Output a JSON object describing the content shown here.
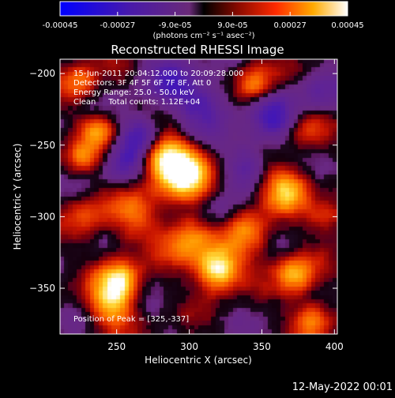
{
  "chart_data": {
    "type": "heatmap",
    "title": "Reconstructed RHESSI Image",
    "xlabel": "Heliocentric X (arcsec)",
    "ylabel": "Heliocentric Y (arcsec)",
    "xlim": [
      211,
      402
    ],
    "ylim": [
      -382,
      -190
    ],
    "x_ticks": [
      250,
      300,
      350,
      400
    ],
    "y_ticks": [
      -200,
      -250,
      -300,
      -350
    ],
    "x_tick_labels": [
      "250",
      "300",
      "350",
      "400"
    ],
    "y_tick_labels": [
      "-200",
      "-250",
      "-300",
      "-350"
    ],
    "colorbar": {
      "range": [
        -0.00045,
        0.00045
      ],
      "ticks": [
        -0.00045,
        -0.00027,
        -9e-05,
        9e-05,
        0.00027,
        0.00045
      ],
      "tick_labels": [
        "-0.00045",
        "-0.00027",
        "-9.0e-05",
        "9.0e-05",
        "0.00027",
        "0.00045"
      ],
      "label": "(photons cm⁻² s⁻¹ asec⁻²)"
    },
    "annotations": [
      "15-Jun-2011 20:04:12.000 to 20:09:28.000",
      "Detectors: 3F 4F 5F 6F 7F 8F, Att 0",
      "Energy Range: 25.0 - 50.0 keV",
      "Clean     Total counts: 1.12E+04"
    ],
    "peak_label": "Position of Peak = [325,-337]",
    "sources": [
      {
        "x": 320,
        "y": -337,
        "amp": 1.0,
        "sigma": 10
      },
      {
        "x": 296,
        "y": -270,
        "amp": 0.95,
        "sigma": 13
      },
      {
        "x": 280,
        "y": -256,
        "amp": 0.7,
        "sigma": 11
      },
      {
        "x": 366,
        "y": -281,
        "amp": 0.7,
        "sigma": 11
      },
      {
        "x": 252,
        "y": -345,
        "amp": 0.8,
        "sigma": 10
      },
      {
        "x": 373,
        "y": -340,
        "amp": 0.65,
        "sigma": 10
      },
      {
        "x": 385,
        "y": -372,
        "amp": 0.55,
        "sigma": 9
      },
      {
        "x": 246,
        "y": -363,
        "amp": 0.6,
        "sigma": 11
      },
      {
        "x": 346,
        "y": -207,
        "amp": 0.55,
        "sigma": 9
      },
      {
        "x": 238,
        "y": -240,
        "amp": 0.6,
        "sigma": 8
      },
      {
        "x": 226,
        "y": -260,
        "amp": 0.45,
        "sigma": 8
      },
      {
        "x": 300,
        "y": -317,
        "amp": 0.6,
        "sigma": 12
      },
      {
        "x": 340,
        "y": -312,
        "amp": 0.5,
        "sigma": 12
      },
      {
        "x": 262,
        "y": -300,
        "amp": 0.4,
        "sigma": 13
      },
      {
        "x": 380,
        "y": -240,
        "amp": 0.35,
        "sigma": 10
      },
      {
        "x": 230,
        "y": -300,
        "amp": 0.35,
        "sigma": 10
      },
      {
        "x": 395,
        "y": -300,
        "amp": 0.4,
        "sigma": 8
      },
      {
        "x": 225,
        "y": -205,
        "amp": 0.5,
        "sigma": 9
      },
      {
        "x": 268,
        "y": -245,
        "amp": -0.7,
        "sigma": 10
      },
      {
        "x": 255,
        "y": -265,
        "amp": -0.4,
        "sigma": 9
      },
      {
        "x": 310,
        "y": -222,
        "amp": -0.45,
        "sigma": 14
      },
      {
        "x": 360,
        "y": -232,
        "amp": -0.5,
        "sigma": 12
      },
      {
        "x": 340,
        "y": -262,
        "amp": -0.4,
        "sigma": 10
      },
      {
        "x": 320,
        "y": -300,
        "amp": -0.3,
        "sigma": 9
      },
      {
        "x": 285,
        "y": -205,
        "amp": -0.35,
        "sigma": 12
      },
      {
        "x": 390,
        "y": -215,
        "amp": -0.3,
        "sigma": 10
      }
    ]
  },
  "timestamp": "12-May-2022 00:01"
}
